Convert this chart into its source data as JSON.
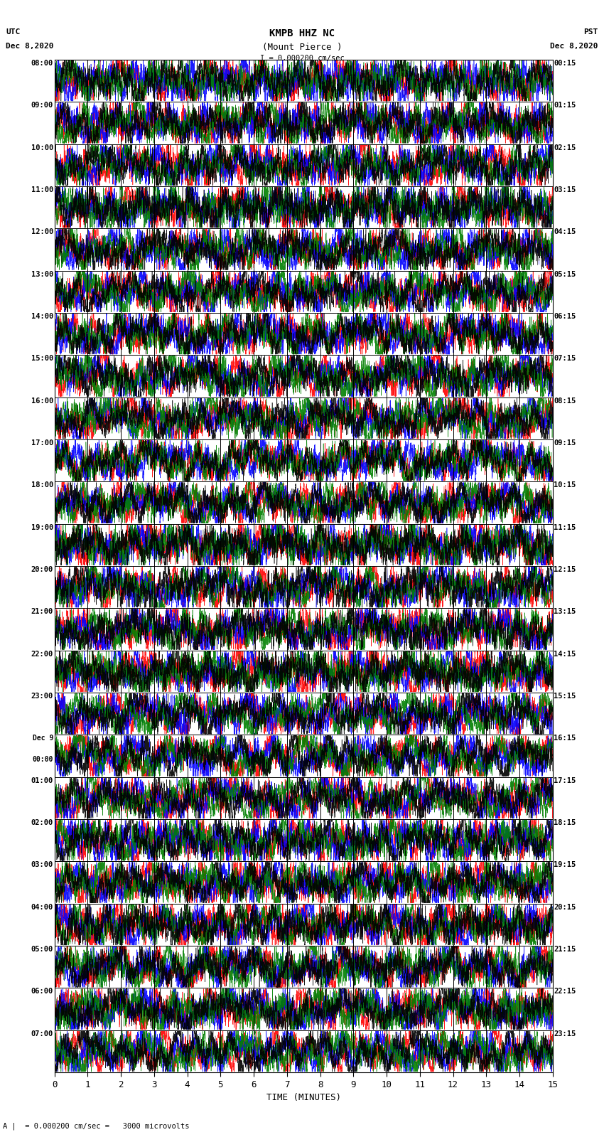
{
  "title_line1": "KMPB HHZ NC",
  "title_line2": "(Mount Pierce )",
  "scale_label": "I = 0.000200 cm/sec",
  "left_label_top": "UTC",
  "left_label_date": "Dec 8,2020",
  "right_label_top": "PST",
  "right_label_date": "Dec 8,2020",
  "bottom_label": "TIME (MINUTES)",
  "scale_note": "= 0.000200 cm/sec =   3000 microvolts",
  "left_times": [
    "08:00",
    "09:00",
    "10:00",
    "11:00",
    "12:00",
    "13:00",
    "14:00",
    "15:00",
    "16:00",
    "17:00",
    "18:00",
    "19:00",
    "20:00",
    "21:00",
    "22:00",
    "23:00",
    "Dec 9\n00:00",
    "01:00",
    "02:00",
    "03:00",
    "04:00",
    "05:00",
    "06:00",
    "07:00"
  ],
  "right_times": [
    "00:15",
    "01:15",
    "02:15",
    "03:15",
    "04:15",
    "05:15",
    "06:15",
    "07:15",
    "08:15",
    "09:15",
    "10:15",
    "11:15",
    "12:15",
    "13:15",
    "14:15",
    "15:15",
    "16:15",
    "17:15",
    "18:15",
    "19:15",
    "20:15",
    "21:15",
    "22:15",
    "23:15"
  ],
  "n_rows": 24,
  "n_minutes": 15,
  "fig_width": 8.5,
  "fig_height": 16.13,
  "bg_color": "#ffffff",
  "colors": [
    "red",
    "blue",
    "green",
    "black"
  ],
  "seed": 42,
  "samples_per_minute": 400,
  "trace_amp": 0.48
}
